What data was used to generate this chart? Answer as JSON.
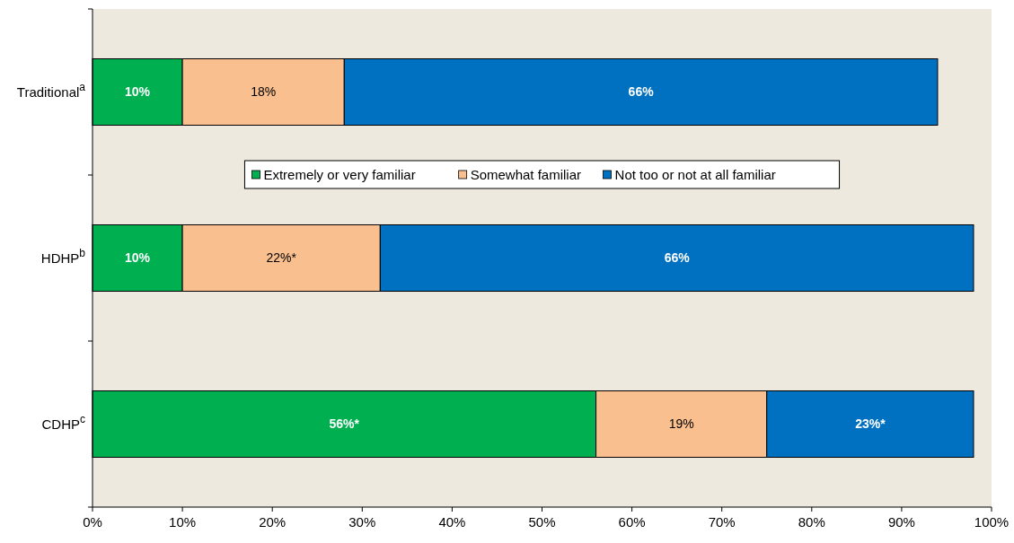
{
  "chart_data": {
    "type": "bar",
    "orientation": "horizontal",
    "stacked": true,
    "categories": [
      "Traditional$^{a}$",
      "HDHP$^{b}$",
      "CDHP$^{c}$"
    ],
    "series": [
      {
        "name": "Extremely or very familiar",
        "color": "#00b050",
        "values": [
          10,
          10,
          56
        ],
        "value_labels": [
          "10%",
          "10%",
          "56%*"
        ]
      },
      {
        "name": "Somewhat familiar",
        "color": "#f9bf8f",
        "values": [
          18,
          22,
          19
        ],
        "value_labels": [
          "18%",
          "22%*",
          "19%"
        ]
      },
      {
        "name": "Not too or not at all familiar",
        "color": "#0070c0",
        "values": [
          66,
          66,
          23
        ],
        "value_labels": [
          "66%",
          "66%",
          "23%*"
        ]
      }
    ],
    "xlim": [
      0,
      100
    ],
    "xticks": [
      {
        "value": 0,
        "label": "0%"
      },
      {
        "value": 10,
        "label": "10%"
      },
      {
        "value": 20,
        "label": "20%"
      },
      {
        "value": 30,
        "label": "30%"
      },
      {
        "value": 40,
        "label": "40%"
      },
      {
        "value": 50,
        "label": "50%"
      },
      {
        "value": 60,
        "label": "60%"
      },
      {
        "value": 70,
        "label": "70%"
      },
      {
        "value": 80,
        "label": "80%"
      },
      {
        "value": 90,
        "label": "90%"
      },
      {
        "value": 100,
        "label": "100%"
      }
    ],
    "legend": "top",
    "grid": false
  }
}
